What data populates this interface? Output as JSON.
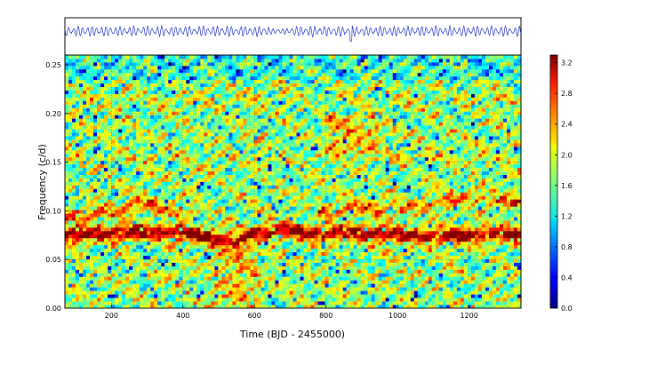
{
  "chart_data": [
    {
      "type": "line",
      "title": "",
      "xlabel": "",
      "ylabel": "",
      "xlim": [
        70,
        1345
      ],
      "color": "#2233cc",
      "description_series": {
        "name": "",
        "x": [
          70,
          1345
        ]
      }
    },
    {
      "type": "heatmap",
      "title": "",
      "xlabel": "Time (BJD - 2455000)",
      "ylabel": "Frequency (c/d)",
      "xlim": [
        70,
        1345
      ],
      "ylim": [
        0.0,
        0.26
      ],
      "x_ticks": [
        200,
        400,
        600,
        800,
        1000,
        1200
      ],
      "y_ticks": [
        "0.00",
        "0.05",
        "0.10",
        "0.15",
        "0.20",
        "0.25"
      ],
      "grid": true,
      "colormap": "jet",
      "dominant_ridges": [
        {
          "name": "",
          "x": [
            70,
            200,
            300,
            400,
            500,
            550,
            600,
            700,
            800,
            900,
            1000,
            1100,
            1200,
            1300,
            1345
          ],
          "y": [
            0.075,
            0.078,
            0.079,
            0.077,
            0.073,
            0.068,
            0.078,
            0.08,
            0.077,
            0.078,
            0.076,
            0.074,
            0.076,
            0.076,
            0.075
          ]
        },
        {
          "name": "",
          "x": [
            100,
            200,
            300,
            400,
            800,
            900,
            1000,
            1100,
            1200,
            1300
          ],
          "y": [
            0.095,
            0.1,
            0.108,
            0.1,
            0.1,
            0.103,
            0.102,
            0.108,
            0.115,
            0.11
          ]
        }
      ],
      "colorbar": {
        "min": 0.0,
        "max": 3.3,
        "ticks": [
          "0.0",
          "0.4",
          "0.8",
          "1.2",
          "1.6",
          "2.0",
          "2.4",
          "2.8",
          "3.2"
        ]
      }
    }
  ]
}
